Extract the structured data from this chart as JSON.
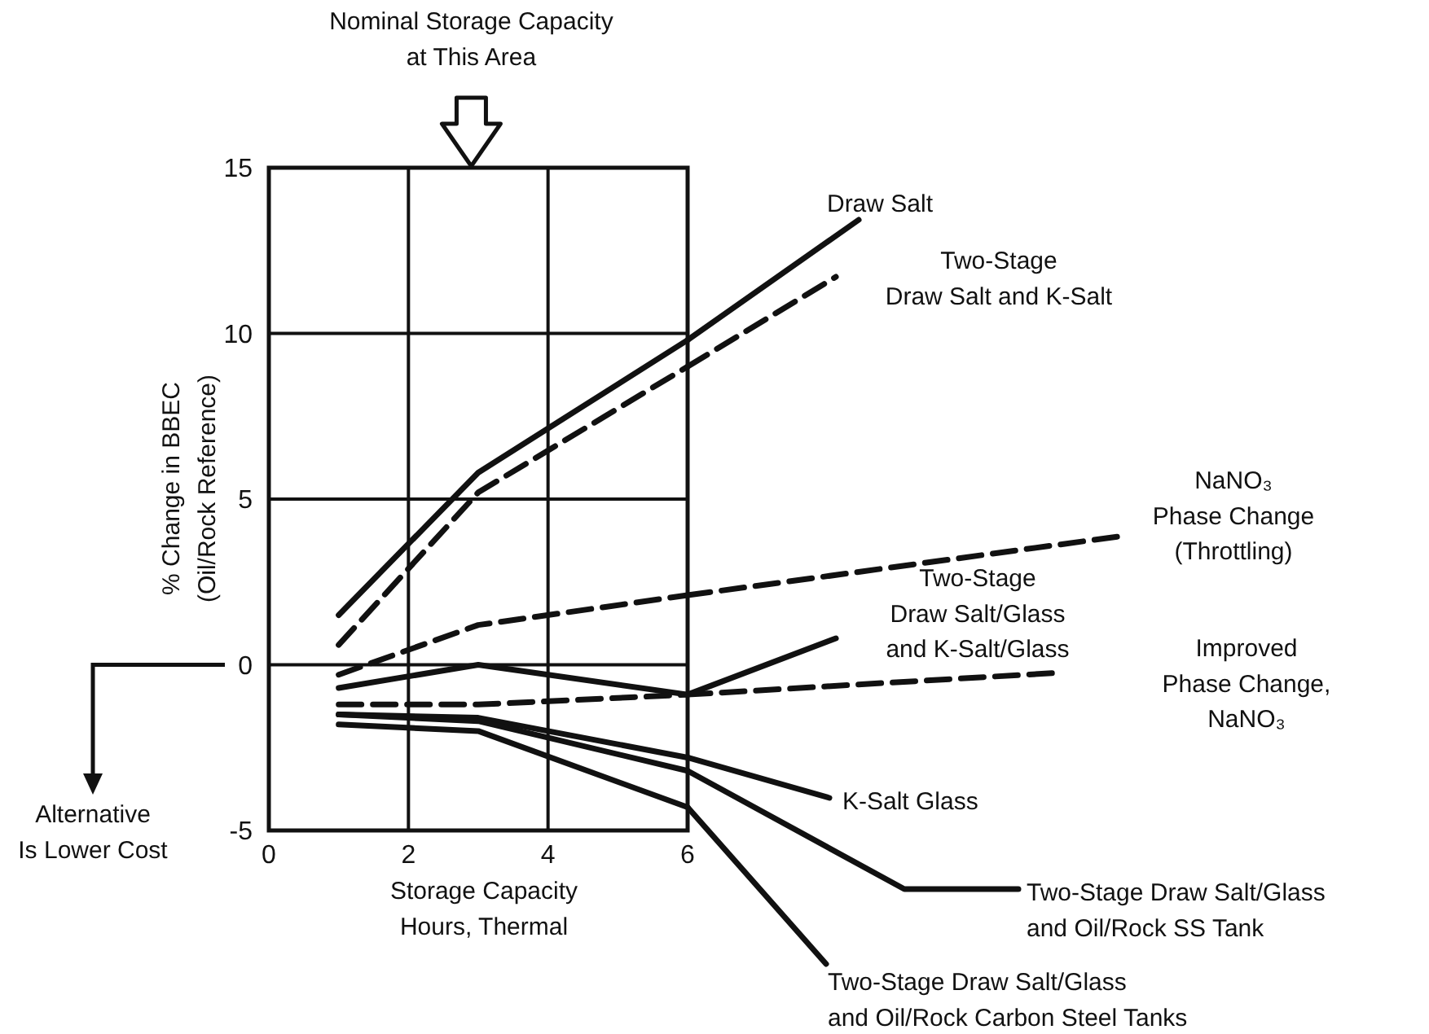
{
  "chart_data": {
    "type": "line",
    "ylabel": "% Change in BBEC\n(Oil/Rock Reference)",
    "xlabel": "Storage Capacity\nHours, Thermal",
    "x": [
      1,
      3,
      6
    ],
    "xlim": [
      0,
      6
    ],
    "ylim": [
      -5,
      15
    ],
    "xticks": [
      0,
      2,
      4,
      6
    ],
    "yticks": [
      -5,
      0,
      5,
      10,
      15
    ],
    "grid": true,
    "marker": "none",
    "series": [
      {
        "name": "Draw Salt",
        "color": "#111111",
        "line_style": "solid",
        "values": [
          1.5,
          5.8,
          9.8
        ]
      },
      {
        "name": "Two-Stage\nDraw Salt and K-Salt",
        "color": "#111111",
        "line_style": "dashed",
        "values": [
          0.6,
          5.2,
          9.0
        ]
      },
      {
        "name": "NaNO₃\nPhase Change\n(Throttling)",
        "color": "#111111",
        "line_style": "dashed",
        "values": [
          -0.3,
          1.2,
          2.1
        ]
      },
      {
        "name": "Two-Stage\nDraw Salt/Glass\nand K-Salt/Glass",
        "color": "#111111",
        "line_style": "solid",
        "values": [
          -0.7,
          0,
          -0.9
        ]
      },
      {
        "name": "Improved\nPhase Change,\nNaNO₃",
        "color": "#111111",
        "line_style": "dashed",
        "values": [
          -1.2,
          -1.2,
          -0.9
        ]
      },
      {
        "name": "K-Salt Glass",
        "color": "#111111",
        "line_style": "solid",
        "values": [
          -1.5,
          -1.6,
          -2.8
        ]
      },
      {
        "name": "Two-Stage Draw Salt/Glass\nand Oil/Rock SS Tank",
        "color": "#111111",
        "line_style": "solid",
        "values": [
          -1.5,
          -1.7,
          -3.2
        ]
      },
      {
        "name": "Two-Stage Draw Salt/Glass\nand Oil/Rock Carbon Steel Tanks",
        "color": "#111111",
        "line_style": "solid",
        "values": [
          -1.8,
          -2.0,
          -4.3
        ]
      }
    ],
    "annotations": [
      "Nominal Storage Capacity\nat This Area",
      "Alternative\nIs Lower Cost"
    ]
  }
}
